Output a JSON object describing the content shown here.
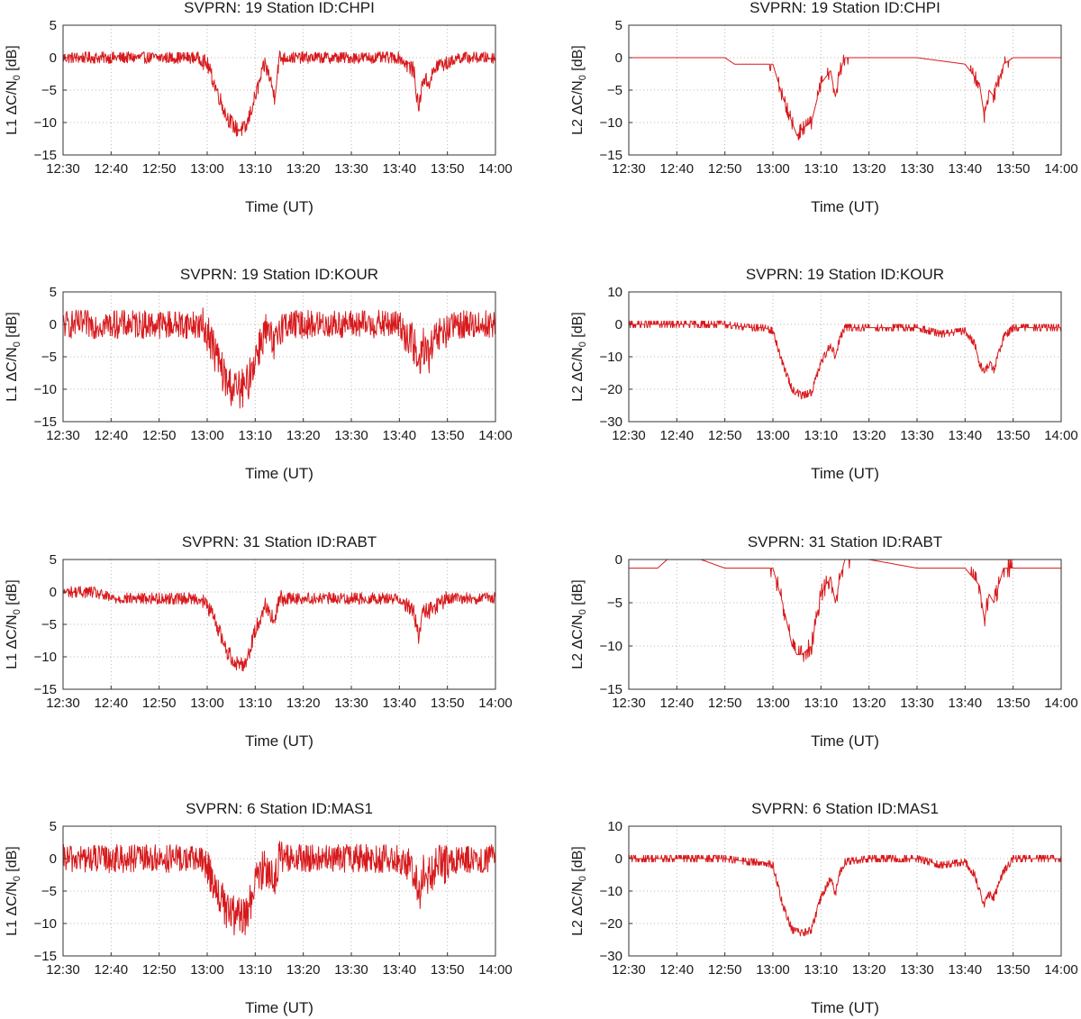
{
  "colors": {
    "series": "#d7191c"
  },
  "chart_data": [
    {
      "type": "line",
      "title": "SVPRN: 19  Station ID:CHPI",
      "xlabel": "Time (UT)",
      "ylabel_prefix": "L1 ΔC/N",
      "ylabel_sub": "0",
      "ylabel_suffix": " [dB]",
      "xlim": [
        "12:30",
        "14:00"
      ],
      "ylim": [
        -15,
        5
      ],
      "xticks": [
        "12:30",
        "12:40",
        "12:50",
        "13:00",
        "13:10",
        "13:20",
        "13:30",
        "13:40",
        "13:50",
        "14:00"
      ],
      "yticks": [
        5,
        0,
        -5,
        -10,
        -15
      ],
      "series": [
        {
          "time": [
            "12:30",
            "12:40",
            "12:50",
            "12:58",
            "13:00",
            "13:02",
            "13:04",
            "13:06",
            "13:08",
            "13:10",
            "13:12",
            "13:13",
            "13:14",
            "13:15",
            "13:20",
            "13:30",
            "13:40",
            "13:43",
            "13:44",
            "13:45",
            "13:46",
            "13:48",
            "13:50",
            "13:52",
            "14:00"
          ],
          "values": [
            0,
            0,
            0,
            0,
            -1,
            -5,
            -9,
            -11,
            -11,
            -6,
            -1,
            -3,
            -6,
            0,
            0,
            0,
            0,
            -2,
            -8,
            -3,
            -4,
            -1,
            -1,
            0,
            0
          ]
        }
      ]
    },
    {
      "type": "line",
      "title": "SVPRN: 19  Station ID:CHPI",
      "xlabel": "Time (UT)",
      "ylabel_prefix": "L2 ΔC/N",
      "ylabel_sub": "0",
      "ylabel_suffix": " [dB]",
      "xlim": [
        "12:30",
        "14:00"
      ],
      "ylim": [
        -15,
        5
      ],
      "xticks": [
        "12:30",
        "12:40",
        "12:50",
        "13:00",
        "13:10",
        "13:20",
        "13:30",
        "13:40",
        "13:50",
        "14:00"
      ],
      "yticks": [
        5,
        0,
        -5,
        -10,
        -15
      ],
      "series": [
        {
          "time": [
            "12:30",
            "12:40",
            "12:50",
            "12:52",
            "12:58",
            "13:00",
            "13:02",
            "13:04",
            "13:05",
            "13:06",
            "13:08",
            "13:10",
            "13:12",
            "13:13",
            "13:14",
            "13:15",
            "13:20",
            "13:30",
            "13:40",
            "13:43",
            "13:44",
            "13:45",
            "13:46",
            "13:48",
            "13:50",
            "14:00"
          ],
          "values": [
            0,
            0,
            0,
            -1,
            -1,
            -1,
            -6,
            -10,
            -12,
            -11,
            -10,
            -4,
            -2,
            -6,
            -2,
            0,
            0,
            0,
            -1,
            -4,
            -9,
            -5,
            -6,
            -1,
            0,
            0
          ]
        }
      ]
    },
    {
      "type": "line",
      "title": "SVPRN: 19  Station ID:KOUR",
      "xlabel": "Time (UT)",
      "ylabel_prefix": "L1 ΔC/N",
      "ylabel_sub": "0",
      "ylabel_suffix": " [dB]",
      "xlim": [
        "12:30",
        "14:00"
      ],
      "ylim": [
        -15,
        5
      ],
      "xticks": [
        "12:30",
        "12:40",
        "12:50",
        "13:00",
        "13:10",
        "13:20",
        "13:30",
        "13:40",
        "13:50",
        "14:00"
      ],
      "yticks": [
        5,
        0,
        -5,
        -10,
        -15
      ],
      "series": [
        {
          "time": [
            "12:30",
            "12:40",
            "12:50",
            "12:58",
            "13:00",
            "13:02",
            "13:04",
            "13:06",
            "13:08",
            "13:10",
            "13:12",
            "13:13",
            "13:14",
            "13:15",
            "13:20",
            "13:30",
            "13:40",
            "13:43",
            "13:44",
            "13:45",
            "13:46",
            "13:48",
            "13:50",
            "13:52",
            "14:00"
          ],
          "values": [
            0,
            0,
            0,
            0,
            -1,
            -5,
            -9,
            -10,
            -10,
            -5,
            -1,
            -2,
            -4,
            0,
            0,
            0,
            0,
            -3,
            -7,
            -3,
            -5,
            -2,
            -1,
            0,
            0
          ]
        }
      ]
    },
    {
      "type": "line",
      "title": "SVPRN: 19  Station ID:KOUR",
      "xlabel": "Time (UT)",
      "ylabel_prefix": "L2 ΔC/N",
      "ylabel_sub": "0",
      "ylabel_suffix": " [dB]",
      "xlim": [
        "12:30",
        "14:00"
      ],
      "ylim": [
        -30,
        10
      ],
      "xticks": [
        "12:30",
        "12:40",
        "12:50",
        "13:00",
        "13:10",
        "13:20",
        "13:30",
        "13:40",
        "13:50",
        "14:00"
      ],
      "yticks": [
        10,
        0,
        -10,
        -20,
        -30
      ],
      "series": [
        {
          "time": [
            "12:30",
            "12:40",
            "12:50",
            "12:55",
            "12:58",
            "13:00",
            "13:02",
            "13:04",
            "13:06",
            "13:08",
            "13:10",
            "13:12",
            "13:13",
            "13:14",
            "13:15",
            "13:20",
            "13:30",
            "13:35",
            "13:40",
            "13:42",
            "13:43",
            "13:44",
            "13:45",
            "13:46",
            "13:48",
            "13:50",
            "14:00"
          ],
          "values": [
            0,
            0,
            0,
            -1,
            -1,
            -2,
            -12,
            -20,
            -22,
            -21,
            -12,
            -6,
            -10,
            -4,
            -1,
            -1,
            -1,
            -3,
            -2,
            -6,
            -12,
            -15,
            -12,
            -14,
            -4,
            -1,
            -1
          ]
        }
      ]
    },
    {
      "type": "line",
      "title": "SVPRN: 31  Station ID:RABT",
      "xlabel": "Time (UT)",
      "ylabel_prefix": "L1 ΔC/N",
      "ylabel_sub": "0",
      "ylabel_suffix": " [dB]",
      "xlim": [
        "12:30",
        "14:00"
      ],
      "ylim": [
        -15,
        5
      ],
      "xticks": [
        "12:30",
        "12:40",
        "12:50",
        "13:00",
        "13:10",
        "13:20",
        "13:30",
        "13:40",
        "13:50",
        "14:00"
      ],
      "yticks": [
        5,
        0,
        -5,
        -10,
        -15
      ],
      "series": [
        {
          "time": [
            "12:30",
            "12:36",
            "12:40",
            "12:50",
            "12:58",
            "13:00",
            "13:02",
            "13:04",
            "13:06",
            "13:08",
            "13:10",
            "13:12",
            "13:13",
            "13:14",
            "13:15",
            "13:20",
            "13:30",
            "13:40",
            "13:43",
            "13:44",
            "13:45",
            "13:46",
            "13:48",
            "13:50",
            "14:00"
          ],
          "values": [
            0,
            0,
            -1,
            -1,
            -1,
            -2,
            -5,
            -9,
            -11,
            -11,
            -6,
            -2,
            -3,
            -5,
            -1,
            -1,
            -1,
            -1,
            -3,
            -7,
            -3,
            -3,
            -2,
            -1,
            -1
          ]
        }
      ]
    },
    {
      "type": "line",
      "title": "SVPRN: 31  Station ID:RABT",
      "xlabel": "Time (UT)",
      "ylabel_prefix": "L2 ΔC/N",
      "ylabel_sub": "0",
      "ylabel_suffix": " [dB]",
      "xlim": [
        "12:30",
        "14:00"
      ],
      "ylim": [
        -15,
        0
      ],
      "xticks": [
        "12:30",
        "12:40",
        "12:50",
        "13:00",
        "13:10",
        "13:20",
        "13:30",
        "13:40",
        "13:50",
        "14:00"
      ],
      "yticks": [
        0,
        -5,
        -10,
        -15
      ],
      "series": [
        {
          "time": [
            "12:30",
            "12:36",
            "12:38",
            "12:45",
            "12:50",
            "12:58",
            "13:00",
            "13:02",
            "13:04",
            "13:05",
            "13:06",
            "13:08",
            "13:10",
            "13:12",
            "13:13",
            "13:14",
            "13:15",
            "13:20",
            "13:30",
            "13:40",
            "13:43",
            "13:44",
            "13:45",
            "13:46",
            "13:48",
            "13:50",
            "14:00"
          ],
          "values": [
            -1,
            -1,
            0,
            0,
            -1,
            -1,
            -1,
            -5,
            -10,
            -11,
            -11,
            -10,
            -4,
            -2,
            -5,
            -2,
            0,
            0,
            -1,
            -1,
            -3,
            -7,
            -4,
            -5,
            -1,
            -1,
            -1
          ]
        }
      ]
    },
    {
      "type": "line",
      "title": "SVPRN: 6  Station ID:MAS1",
      "xlabel": "Time (UT)",
      "ylabel_prefix": "L1 ΔC/N",
      "ylabel_sub": "0",
      "ylabel_suffix": " [dB]",
      "xlim": [
        "12:30",
        "14:00"
      ],
      "ylim": [
        -15,
        5
      ],
      "xticks": [
        "12:30",
        "12:40",
        "12:50",
        "13:00",
        "13:10",
        "13:20",
        "13:30",
        "13:40",
        "13:50",
        "14:00"
      ],
      "yticks": [
        5,
        0,
        -5,
        -10,
        -15
      ],
      "series": [
        {
          "time": [
            "12:30",
            "12:40",
            "12:50",
            "12:58",
            "13:00",
            "13:02",
            "13:04",
            "13:06",
            "13:08",
            "13:10",
            "13:12",
            "13:13",
            "13:14",
            "13:15",
            "13:20",
            "13:30",
            "13:40",
            "13:43",
            "13:44",
            "13:45",
            "13:46",
            "13:48",
            "13:50",
            "13:52",
            "14:00"
          ],
          "values": [
            0,
            0,
            0,
            0,
            -1,
            -5,
            -8,
            -9,
            -9,
            -4,
            -1,
            -2,
            -3,
            0,
            0,
            0,
            0,
            -2,
            -6,
            -2,
            -3,
            -1,
            -1,
            0,
            0
          ]
        }
      ]
    },
    {
      "type": "line",
      "title": "SVPRN: 6  Station ID:MAS1",
      "xlabel": "Time (UT)",
      "ylabel_prefix": "L2 ΔC/N",
      "ylabel_sub": "0",
      "ylabel_suffix": " [dB]",
      "xlim": [
        "12:30",
        "14:00"
      ],
      "ylim": [
        -30,
        10
      ],
      "xticks": [
        "12:30",
        "12:40",
        "12:50",
        "13:00",
        "13:10",
        "13:20",
        "13:30",
        "13:40",
        "13:50",
        "14:00"
      ],
      "yticks": [
        10,
        0,
        -10,
        -20,
        -30
      ],
      "series": [
        {
          "time": [
            "12:30",
            "12:40",
            "12:50",
            "12:55",
            "12:58",
            "13:00",
            "13:02",
            "13:04",
            "13:06",
            "13:08",
            "13:10",
            "13:12",
            "13:13",
            "13:14",
            "13:15",
            "13:20",
            "13:30",
            "13:35",
            "13:40",
            "13:42",
            "13:43",
            "13:44",
            "13:45",
            "13:46",
            "13:48",
            "13:50",
            "14:00"
          ],
          "values": [
            0,
            0,
            0,
            -1,
            -1,
            -2,
            -14,
            -22,
            -23,
            -22,
            -12,
            -6,
            -11,
            -4,
            -1,
            0,
            0,
            -2,
            -1,
            -5,
            -10,
            -14,
            -11,
            -12,
            -4,
            0,
            0
          ]
        }
      ]
    }
  ]
}
